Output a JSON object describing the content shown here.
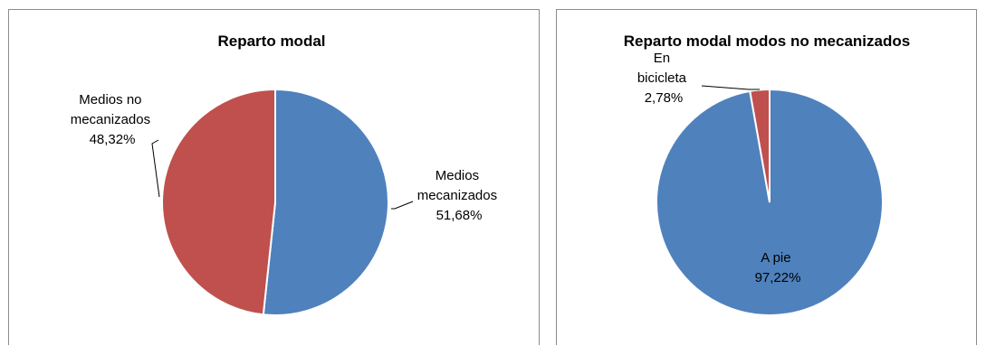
{
  "chart_data": [
    {
      "type": "pie",
      "title": "Reparto modal",
      "categories": [
        "Medios mecanizados",
        "Medios no mecanizados"
      ],
      "values": [
        51.68,
        48.32
      ],
      "value_labels": [
        "51,68%",
        "48,32%"
      ],
      "label_lines": [
        [
          "Medios",
          "mecanizados",
          "51,68%"
        ],
        [
          "Medios no",
          "mecanizados",
          "48,32%"
        ]
      ],
      "colors": [
        "#4f81bd",
        "#c0504d"
      ]
    },
    {
      "type": "pie",
      "title": "Reparto modal  modos no mecanizados",
      "categories": [
        "A pie",
        "En bicicleta"
      ],
      "values": [
        97.22,
        2.78
      ],
      "value_labels": [
        "97,22%",
        "2,78%"
      ],
      "label_lines": [
        [
          "A pie",
          "97,22%"
        ],
        [
          "En",
          "bicicleta",
          "2,78%"
        ]
      ],
      "colors": [
        "#4f81bd",
        "#c0504d"
      ]
    }
  ]
}
